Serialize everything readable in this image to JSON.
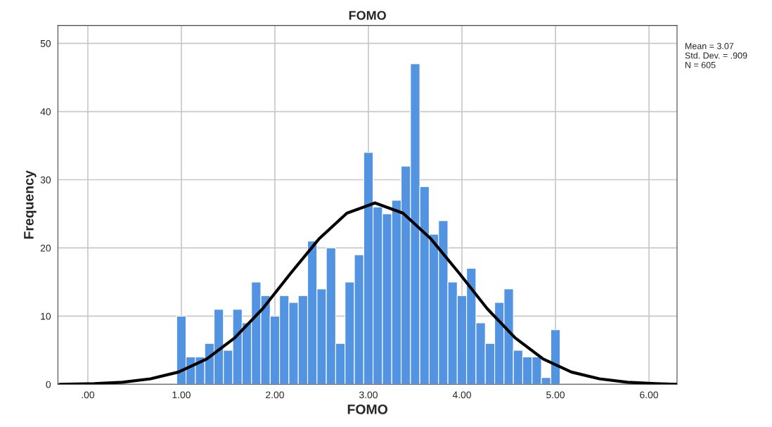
{
  "chart_data": {
    "type": "histogram",
    "title": "FOMO",
    "xlabel": "FOMO",
    "ylabel": "Frequency",
    "bins": [
      0.95,
      1.05,
      1.15,
      1.25,
      1.35,
      1.45,
      1.55,
      1.65,
      1.75,
      1.85,
      1.95,
      2.05,
      2.15,
      2.25,
      2.35,
      2.45,
      2.55,
      2.65,
      2.75,
      2.85,
      2.95,
      3.05,
      3.15,
      3.25,
      3.35,
      3.45,
      3.55,
      3.65,
      3.75,
      3.85,
      3.95,
      4.05,
      4.15,
      4.25,
      4.35,
      4.45,
      4.55,
      4.65,
      4.75,
      4.85,
      4.95,
      5.05
    ],
    "values": [
      10,
      4,
      4,
      6,
      11,
      5,
      11,
      9,
      15,
      13,
      10,
      13,
      12,
      13,
      21,
      14,
      20,
      6,
      15,
      19,
      34,
      26,
      25,
      27,
      32,
      47,
      29,
      22,
      24,
      15,
      13,
      17,
      9,
      6,
      12,
      14,
      5,
      4,
      4,
      1,
      8
    ],
    "color": "#5294e2",
    "series": [
      {
        "type": "line",
        "color": "#000000",
        "x": [
          -0.3,
          0.07,
          0.37,
          0.67,
          0.97,
          1.27,
          1.57,
          1.87,
          2.17,
          2.47,
          2.77,
          3.07,
          3.37,
          3.67,
          3.97,
          4.27,
          4.57,
          4.87,
          5.17,
          5.47,
          5.77,
          6.07,
          6.3
        ],
        "values": [
          0.0,
          0.1,
          0.3,
          0.8,
          1.8,
          3.7,
          6.8,
          11.1,
          16.3,
          21.3,
          25.1,
          26.6,
          25.1,
          21.3,
          16.3,
          11.1,
          6.8,
          3.7,
          1.8,
          0.8,
          0.3,
          0.1,
          0.0
        ]
      }
    ],
    "xlim": [
      -0.32,
      6.3
    ],
    "xticks": [
      {
        "value": 0,
        "label": ".00"
      },
      {
        "value": 1,
        "label": "1.00"
      },
      {
        "value": 2,
        "label": "2.00"
      },
      {
        "value": 3,
        "label": "3.00"
      },
      {
        "value": 4,
        "label": "4.00"
      },
      {
        "value": 5,
        "label": "5.00"
      },
      {
        "value": 6,
        "label": "6.00"
      }
    ],
    "ylim": [
      0,
      52.6
    ],
    "yticks": [
      0,
      10,
      20,
      30,
      40,
      50
    ],
    "grid": true,
    "annotations": [
      "Mean = 3.07\nStd. Dev. = .909\nN = 605"
    ]
  }
}
